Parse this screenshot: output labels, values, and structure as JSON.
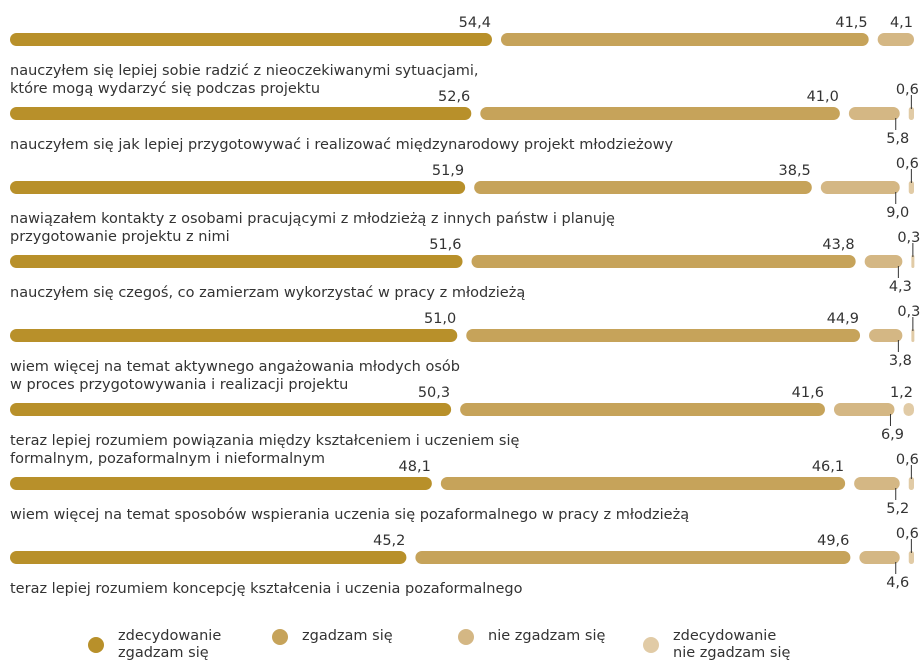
{
  "chart_data": {
    "type": "bar",
    "orientation": "horizontal",
    "stacked": true,
    "xlim": [
      0,
      100
    ],
    "series": [
      {
        "name": "zdecydowanie zgadzam się",
        "color": "#B8902A"
      },
      {
        "name": "zgadzam się",
        "color": "#C6A35A"
      },
      {
        "name": "nie zgadzam się",
        "color": "#D4B784"
      },
      {
        "name": "zdecydowanie nie zgadzam się",
        "color": "#E1CBA6"
      }
    ],
    "rows": [
      {
        "label": "nauczyłem się lepiej sobie radzić z nieoczekiwanymi sytuacjami,\nktóre mogą wydarzyć się podczas projektu",
        "values": [
          54.4,
          41.5,
          4.1,
          0
        ],
        "labels": [
          "54,4",
          "41,5",
          "4,1",
          ""
        ]
      },
      {
        "label": "nauczyłem się jak lepiej przygotowywać i realizować międzynarodowy projekt młodzieżowy",
        "values": [
          52.6,
          41.0,
          5.8,
          0.6
        ],
        "labels": [
          "52,6",
          "41,0",
          "5,8",
          "0,6"
        ]
      },
      {
        "label": "nawiązałem kontakty z osobami pracującymi z młodzieżą z innych państw i planuję\nprzygotowanie projektu z nimi",
        "values": [
          51.9,
          38.5,
          9.0,
          0.6
        ],
        "labels": [
          "51,9",
          "38,5",
          "9,0",
          "0,6"
        ]
      },
      {
        "label": "nauczyłem się czegoś, co zamierzam wykorzystać w pracy z młodzieżą",
        "values": [
          51.6,
          43.8,
          4.3,
          0.3
        ],
        "labels": [
          "51,6",
          "43,8",
          "4,3",
          "0,3"
        ]
      },
      {
        "label": "wiem więcej na temat aktywnego angażowania młodych osób\nw proces przygotowywania i realizacji projektu",
        "values": [
          51.0,
          44.9,
          3.8,
          0.3
        ],
        "labels": [
          "51,0",
          "44,9",
          "3,8",
          "0,3"
        ]
      },
      {
        "label": "teraz lepiej rozumiem powiązania między kształceniem i uczeniem się\nformalnym, pozaformalnym i nieformalnym",
        "values": [
          50.3,
          41.6,
          6.9,
          1.2
        ],
        "labels": [
          "50,3",
          "41,6",
          "6,9",
          "1,2"
        ]
      },
      {
        "label": "wiem więcej na temat sposobów wspierania uczenia się pozaformalnego w pracy z młodzieżą",
        "values": [
          48.1,
          46.1,
          5.2,
          0.6
        ],
        "labels": [
          "48,1",
          "46,1",
          "5,2",
          "0,6"
        ]
      },
      {
        "label": "teraz lepiej rozumiem koncepcję kształcenia i uczenia pozaformalnego",
        "values": [
          45.2,
          49.6,
          4.6,
          0.6
        ],
        "labels": [
          "45,2",
          "49,6",
          "4,6",
          "0,6"
        ]
      }
    ]
  },
  "legend": [
    {
      "label": "zdecydowanie\nzgadzam się",
      "color": "#B8902A"
    },
    {
      "label": "zgadzam się",
      "color": "#C6A35A"
    },
    {
      "label": "nie zgadzam się",
      "color": "#D4B784"
    },
    {
      "label": "zdecydowanie\nnie zgadzam się",
      "color": "#E1CBA6"
    }
  ]
}
